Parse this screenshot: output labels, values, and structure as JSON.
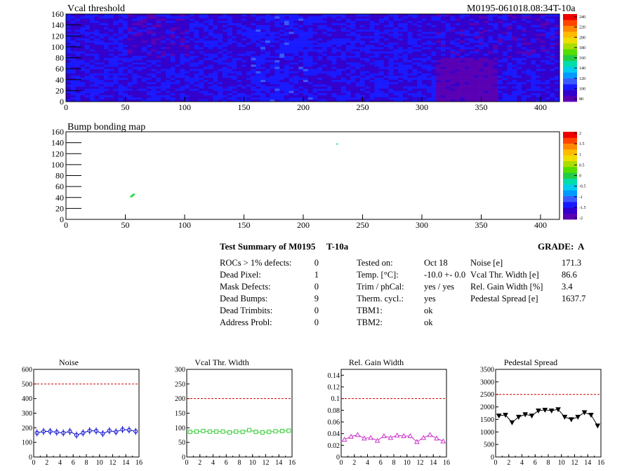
{
  "header": {
    "title_left": "Vcal threshold",
    "title_right": "M0195-061018.08:34T-10a"
  },
  "bump_map": {
    "title": "Bump bonding map"
  },
  "colors": {
    "noise": "#0000cc",
    "vcal": "#33cc33",
    "gain": "#cc33cc",
    "pedestal": "#000000",
    "limit": "#cc0000"
  },
  "summary": {
    "title": "Test Summary of M0195",
    "temp_label": "T-10a",
    "grade": "GRADE:  A",
    "left": [
      {
        "label": "ROCs > 1% defects:",
        "value": "0"
      },
      {
        "label": "Dead Pixel:",
        "value": "1"
      },
      {
        "label": "Mask Defects:",
        "value": "0"
      },
      {
        "label": "Dead Bumps:",
        "value": "9"
      },
      {
        "label": "Dead Trimbits:",
        "value": "0"
      },
      {
        "label": "Address Probl:",
        "value": "0"
      }
    ],
    "middle": [
      {
        "label": "Tested on:",
        "value": "Oct 18"
      },
      {
        "label": "Temp. [°C]:",
        "value": "-10.0 +- 0.0"
      },
      {
        "label": "Trim / phCal:",
        "value": "yes / yes"
      },
      {
        "label": "Therm. cycl.:",
        "value": "yes"
      },
      {
        "label": "TBM1:",
        "value": "ok"
      },
      {
        "label": "TBM2:",
        "value": "ok"
      }
    ],
    "right": [
      {
        "label": "Noise [e]",
        "value": "171.3"
      },
      {
        "label": "Vcal Thr. Width [e]",
        "value": "86.6"
      },
      {
        "label": "Rel. Gain Width [%]",
        "value": "3.4"
      },
      {
        "label": "Pedestal Spread [e]",
        "value": "1637.7"
      }
    ]
  },
  "chart_data": [
    {
      "type": "heatmap",
      "title": "Vcal threshold",
      "xlim": [
        0,
        416
      ],
      "ylim": [
        0,
        160
      ],
      "x_ticks": [
        0,
        50,
        100,
        150,
        200,
        250,
        300,
        350,
        400
      ],
      "y_ticks": [
        0,
        20,
        40,
        60,
        80,
        100,
        120,
        140,
        160
      ],
      "colorbar_ticks": [
        80,
        100,
        120,
        140,
        160,
        180,
        200,
        220,
        240
      ],
      "roc_grid": {
        "columns": 8,
        "rows": 2,
        "roc_width": 52,
        "roc_height": 80
      },
      "roc_mean_levels": [
        [
          100,
          96,
          100,
          104,
          102,
          100,
          98,
          97
        ],
        [
          102,
          100,
          100,
          104,
          100,
          102,
          84,
          100
        ]
      ]
    },
    {
      "type": "scatter",
      "title": "Bump bonding map",
      "xlim": [
        0,
        416
      ],
      "ylim": [
        0,
        160
      ],
      "x_ticks": [
        0,
        50,
        100,
        150,
        200,
        250,
        300,
        350,
        400
      ],
      "y_ticks": [
        0,
        20,
        40,
        60,
        80,
        100,
        120,
        140,
        160
      ],
      "colorbar_ticks": [
        "2",
        "1.5",
        "1",
        "0.5",
        "0",
        "-0.5",
        "-1",
        "-1.5",
        "-2"
      ],
      "points": [
        {
          "x": 54,
          "y": 41
        },
        {
          "x": 55,
          "y": 42
        },
        {
          "x": 55,
          "y": 43
        },
        {
          "x": 56,
          "y": 44
        },
        {
          "x": 56,
          "y": 45
        },
        {
          "x": 57,
          "y": 45
        },
        {
          "x": 55,
          "y": 41
        },
        {
          "x": 56,
          "y": 43
        },
        {
          "x": 228,
          "y": 137
        }
      ]
    },
    {
      "type": "line",
      "title": "Noise",
      "xlim": [
        0,
        16
      ],
      "ylim": [
        0,
        600
      ],
      "x_ticks": [
        0,
        2,
        4,
        6,
        8,
        10,
        12,
        14,
        16
      ],
      "y_ticks": [
        0,
        100,
        200,
        300,
        400,
        500,
        600
      ],
      "limit": 500,
      "series": [
        {
          "x": [
            0.5,
            1.5,
            2.5,
            3.5,
            4.5,
            5.5,
            6.5,
            7.5,
            8.5,
            9.5,
            10.5,
            11.5,
            12.5,
            13.5,
            14.5,
            15.5
          ],
          "values": [
            165,
            175,
            175,
            170,
            165,
            175,
            150,
            165,
            180,
            178,
            160,
            180,
            172,
            188,
            185,
            175
          ]
        }
      ]
    },
    {
      "type": "line",
      "title": "Vcal Thr. Width",
      "xlim": [
        0,
        16
      ],
      "ylim": [
        0,
        300
      ],
      "x_ticks": [
        0,
        2,
        4,
        6,
        8,
        10,
        12,
        14,
        16
      ],
      "y_ticks": [
        0,
        50,
        100,
        150,
        200,
        250,
        300
      ],
      "limit": 200,
      "series": [
        {
          "x": [
            0.5,
            1.5,
            2.5,
            3.5,
            4.5,
            5.5,
            6.5,
            7.5,
            8.5,
            9.5,
            10.5,
            11.5,
            12.5,
            13.5,
            14.5,
            15.5
          ],
          "values": [
            86,
            87,
            89,
            87,
            87,
            87,
            84,
            87,
            86,
            92,
            86,
            84,
            86,
            88,
            89,
            90
          ]
        }
      ]
    },
    {
      "type": "line",
      "title": "Rel. Gain Width",
      "xlim": [
        0,
        16
      ],
      "ylim": [
        0,
        0.15
      ],
      "x_ticks": [
        0,
        2,
        4,
        6,
        8,
        10,
        12,
        14,
        16
      ],
      "y_ticks": [
        0,
        0.02,
        0.04,
        0.06,
        0.08,
        0.1,
        0.12,
        0.14
      ],
      "limit": 0.1,
      "series": [
        {
          "x": [
            0.5,
            1.5,
            2.5,
            3.5,
            4.5,
            5.5,
            6.5,
            7.5,
            8.5,
            9.5,
            10.5,
            11.5,
            12.5,
            13.5,
            14.5,
            15.5
          ],
          "values": [
            0.03,
            0.035,
            0.038,
            0.032,
            0.033,
            0.028,
            0.036,
            0.033,
            0.037,
            0.036,
            0.036,
            0.026,
            0.033,
            0.038,
            0.032,
            0.027
          ]
        }
      ]
    },
    {
      "type": "line",
      "title": "Pedestal Spread",
      "xlim": [
        0,
        16
      ],
      "ylim": [
        0,
        3500
      ],
      "x_ticks": [
        0,
        2,
        4,
        6,
        8,
        10,
        12,
        14,
        16
      ],
      "y_ticks": [
        0,
        500,
        1000,
        1500,
        2000,
        2500,
        3000,
        3500
      ],
      "limit": 2500,
      "series": [
        {
          "x": [
            0.5,
            1.5,
            2.5,
            3.5,
            4.5,
            5.5,
            6.5,
            7.5,
            8.5,
            9.5,
            10.5,
            11.5,
            12.5,
            13.5,
            14.5,
            15.5
          ],
          "values": [
            1650,
            1680,
            1380,
            1600,
            1700,
            1650,
            1850,
            1880,
            1850,
            1900,
            1600,
            1500,
            1600,
            1780,
            1680,
            1250
          ]
        }
      ]
    }
  ]
}
